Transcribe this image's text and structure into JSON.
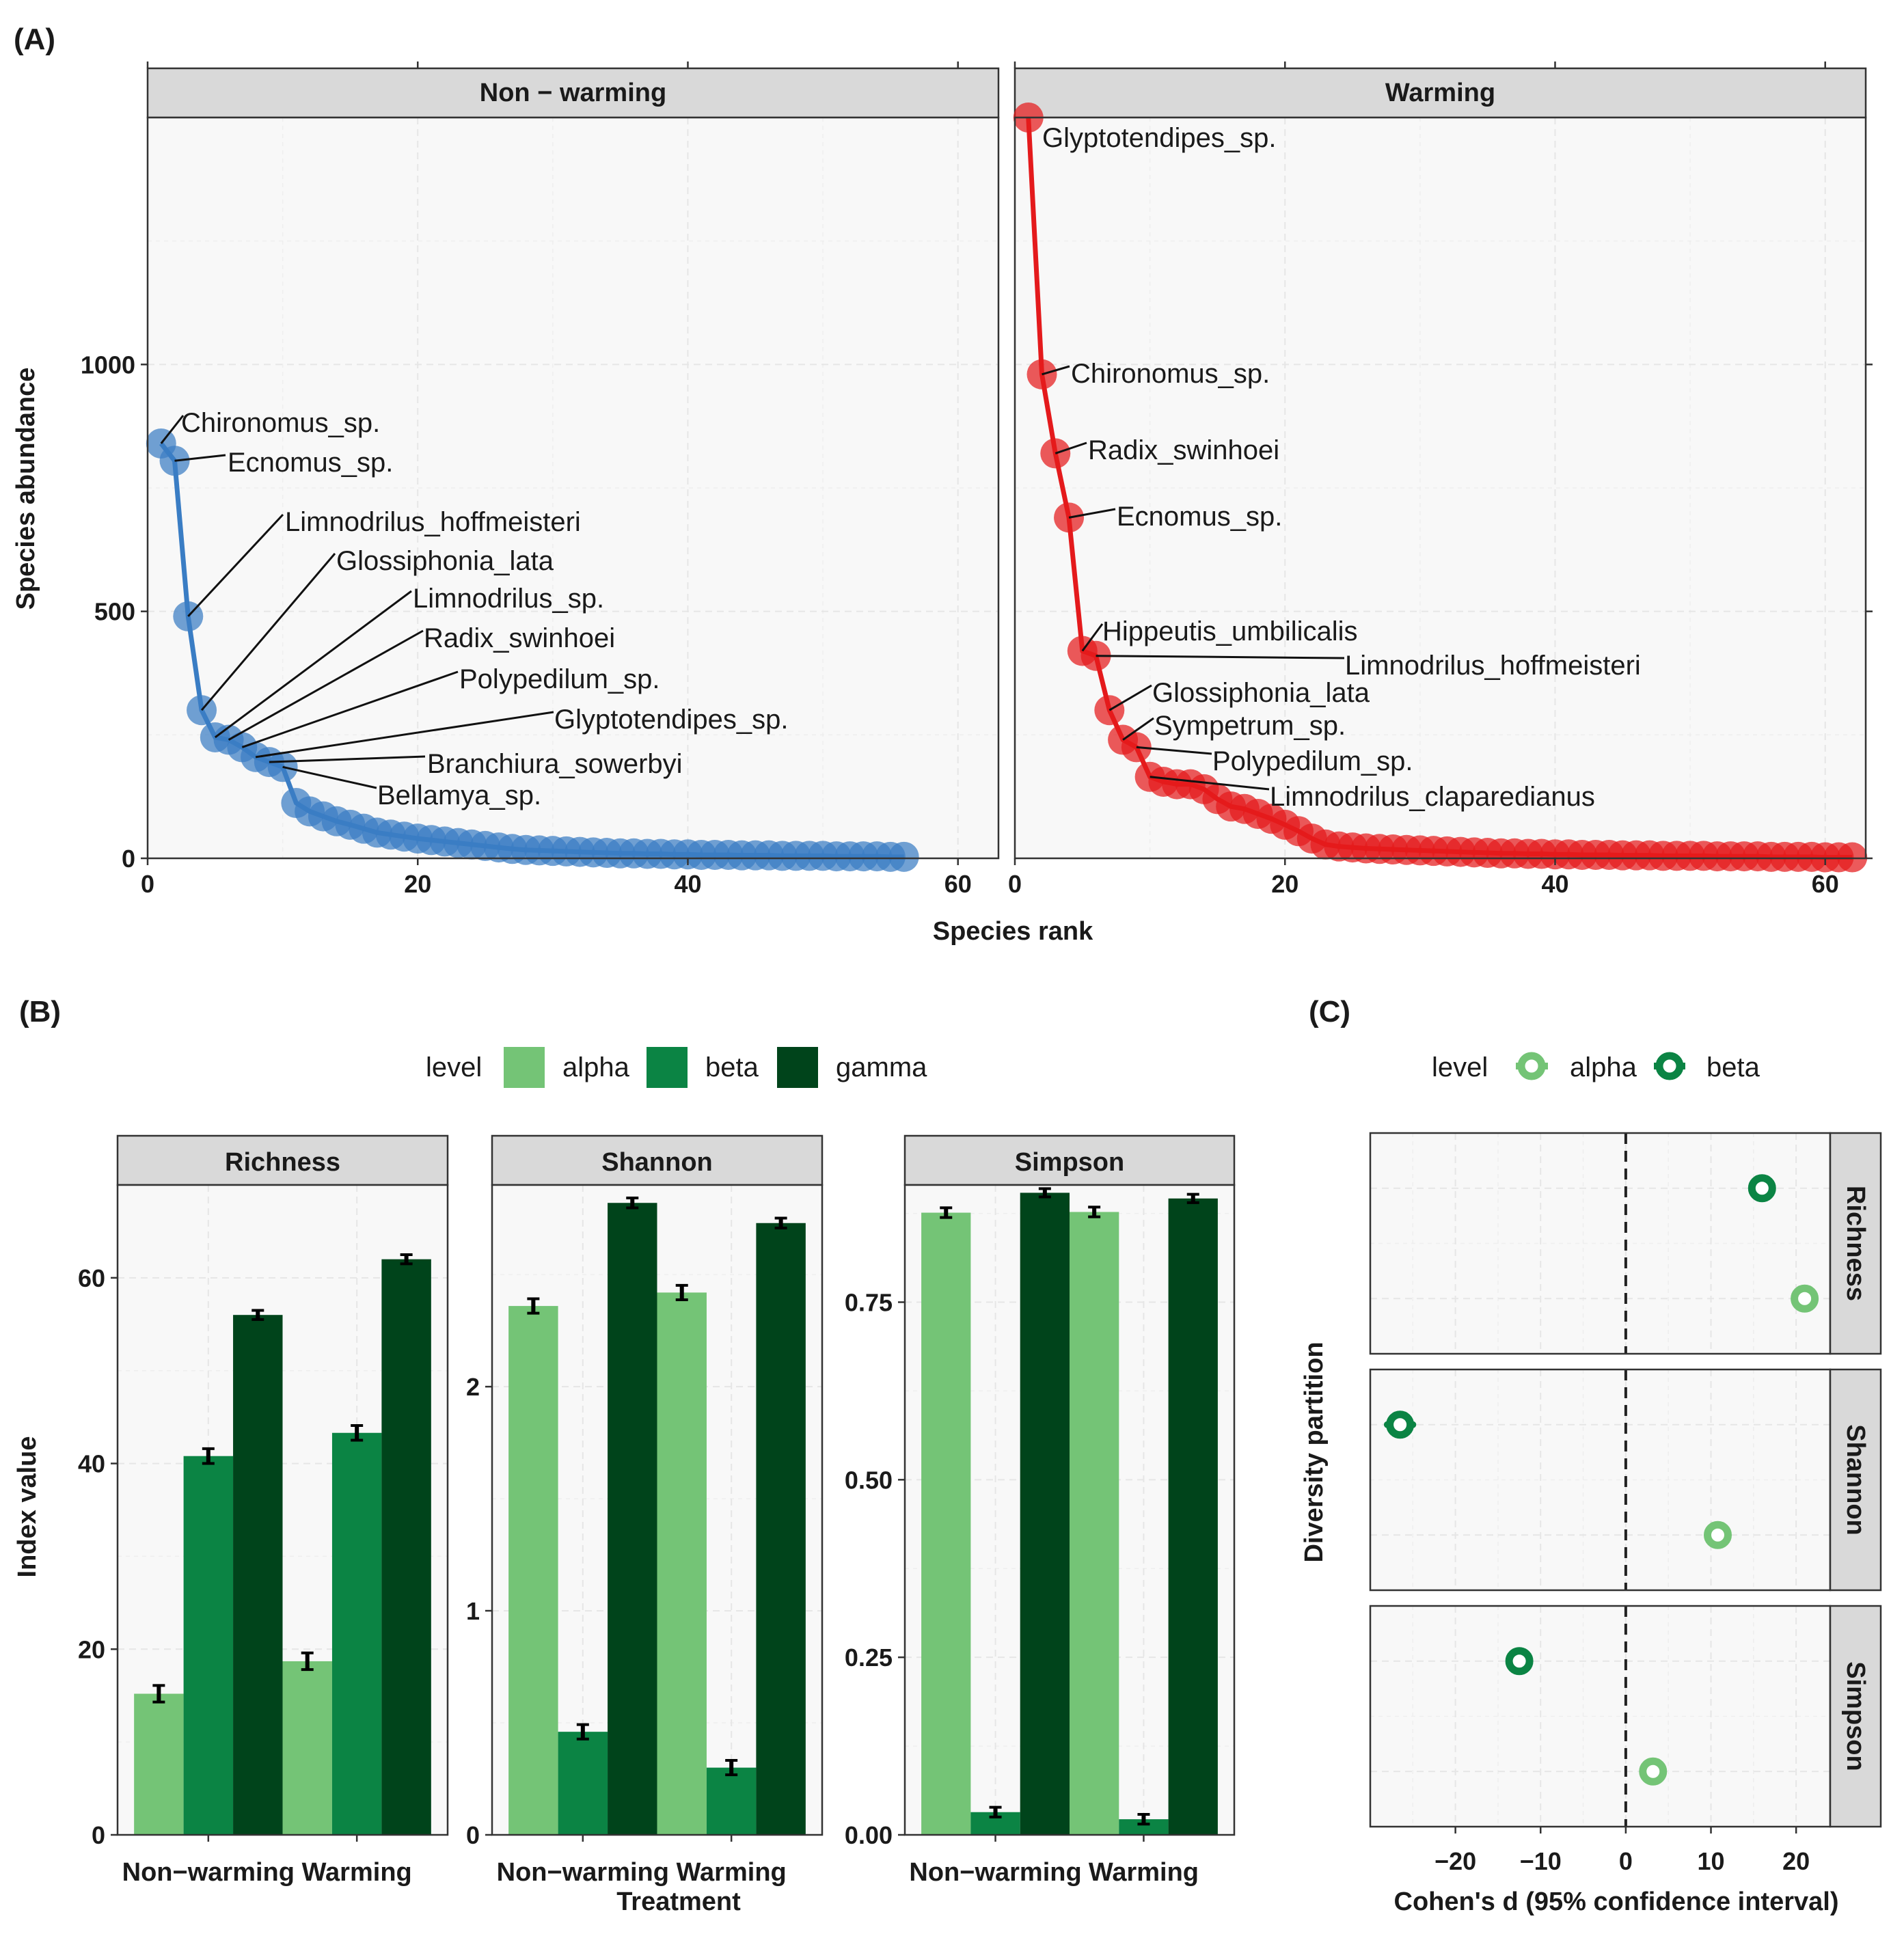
{
  "figure": {
    "panel_labels": {
      "a": "(A)",
      "b": "(B)",
      "c": "(C)"
    }
  },
  "colors": {
    "non_warming": "#3a7dc4",
    "warming": "#e41a1c",
    "alpha": "#74c476",
    "beta": "#0b8444",
    "gamma": "#00441b",
    "strip_bg": "#d9d9d9",
    "panel_bg": "#f8f8f8"
  },
  "chart_data": [
    {
      "id": "A",
      "type": "line",
      "xlabel": "Species rank",
      "ylabel": "Species abundance",
      "xlim": [
        0,
        63
      ],
      "ylim": [
        0,
        1500
      ],
      "xticks": [
        "0",
        "20",
        "40",
        "60"
      ],
      "yticks": [
        "0",
        "500",
        "1000"
      ],
      "facets": [
        {
          "name": "Non − warming",
          "values": [
            840,
            805,
            490,
            300,
            245,
            240,
            225,
            205,
            195,
            185,
            112,
            95,
            85,
            75,
            68,
            60,
            52,
            48,
            44,
            40,
            37,
            34,
            31,
            28,
            25,
            22,
            19,
            17,
            16,
            15,
            14,
            13,
            12,
            11,
            10,
            10,
            9,
            9,
            8,
            8,
            7,
            7,
            7,
            6,
            6,
            6,
            5,
            5,
            5,
            5,
            4,
            4,
            4,
            4,
            3,
            3
          ],
          "labels": [
            {
              "rank": 1,
              "text": "Chironomus_sp."
            },
            {
              "rank": 2,
              "text": "Ecnomus_sp."
            },
            {
              "rank": 3,
              "text": "Limnodrilus_hoffmeisteri"
            },
            {
              "rank": 4,
              "text": "Glossiphonia_lata"
            },
            {
              "rank": 5,
              "text": "Limnodrilus_sp."
            },
            {
              "rank": 6,
              "text": "Radix_swinhoei"
            },
            {
              "rank": 7,
              "text": "Polypedilum_sp."
            },
            {
              "rank": 8,
              "text": "Glyptotendipes_sp."
            },
            {
              "rank": 9,
              "text": "Branchiura_sowerbyi"
            },
            {
              "rank": 10,
              "text": "Bellamya_sp."
            }
          ]
        },
        {
          "name": "Warming",
          "values": [
            1500,
            980,
            820,
            690,
            420,
            410,
            300,
            240,
            225,
            165,
            155,
            150,
            150,
            140,
            120,
            105,
            100,
            90,
            80,
            68,
            55,
            40,
            28,
            24,
            22,
            20,
            19,
            18,
            17,
            16,
            15,
            14,
            13,
            12,
            11,
            10,
            10,
            9,
            9,
            8,
            8,
            7,
            7,
            7,
            6,
            6,
            6,
            5,
            5,
            5,
            5,
            4,
            4,
            4,
            4,
            3,
            3,
            3,
            3,
            2,
            2,
            2
          ],
          "labels": [
            {
              "rank": 1,
              "text": "Glyptotendipes_sp."
            },
            {
              "rank": 2,
              "text": "Chironomus_sp."
            },
            {
              "rank": 3,
              "text": "Radix_swinhoei"
            },
            {
              "rank": 4,
              "text": "Ecnomus_sp."
            },
            {
              "rank": 5,
              "text": "Hippeutis_umbilicalis"
            },
            {
              "rank": 6,
              "text": "Limnodrilus_hoffmeisteri"
            },
            {
              "rank": 7,
              "text": "Glossiphonia_lata"
            },
            {
              "rank": 8,
              "text": "Sympetrum_sp."
            },
            {
              "rank": 9,
              "text": "Polypedilum_sp."
            },
            {
              "rank": 10,
              "text": "Limnodrilus_claparedianus"
            }
          ]
        }
      ]
    },
    {
      "id": "B",
      "type": "bar",
      "xlabel": "Treatment",
      "ylabel": "Index value",
      "legend_title": "level",
      "levels": [
        "alpha",
        "beta",
        "gamma"
      ],
      "categories": [
        "Non−warming",
        "Warming"
      ],
      "facets": [
        {
          "name": "Richness",
          "ylim": [
            0,
            70
          ],
          "yticks": [
            0,
            20,
            40,
            60
          ],
          "ytick_labels": [
            "0",
            "20",
            "40",
            "60"
          ],
          "series": [
            {
              "name": "alpha",
              "values": [
                15.2,
                18.7
              ],
              "errors": [
                0.6,
                0.6
              ]
            },
            {
              "name": "beta",
              "values": [
                40.8,
                43.3
              ],
              "errors": [
                0.5,
                0.5
              ]
            },
            {
              "name": "gamma",
              "values": [
                56,
                62
              ],
              "errors": [
                0.2,
                0.2
              ]
            }
          ]
        },
        {
          "name": "Shannon",
          "ylim": [
            0,
            2.9
          ],
          "yticks": [
            0,
            1,
            2
          ],
          "ytick_labels": [
            "0",
            "1",
            "2"
          ],
          "series": [
            {
              "name": "alpha",
              "values": [
                2.36,
                2.42
              ],
              "errors": [
                0.02,
                0.02
              ]
            },
            {
              "name": "beta",
              "values": [
                0.46,
                0.3
              ],
              "errors": [
                0.02,
                0.02
              ]
            },
            {
              "name": "gamma",
              "values": [
                2.82,
                2.73
              ],
              "errors": [
                0.01,
                0.01
              ]
            }
          ]
        },
        {
          "name": "Simpson",
          "ylim": [
            0,
            0.915
          ],
          "yticks": [
            0,
            0.25,
            0.5,
            0.75
          ],
          "ytick_labels": [
            "0.00",
            "0.25",
            "0.50",
            "0.75"
          ],
          "series": [
            {
              "name": "alpha",
              "values": [
                0.876,
                0.877
              ],
              "errors": [
                0.003,
                0.003
              ]
            },
            {
              "name": "beta",
              "values": [
                0.032,
                0.022
              ],
              "errors": [
                0.003,
                0.003
              ]
            },
            {
              "name": "gamma",
              "values": [
                0.904,
                0.896
              ],
              "errors": [
                0.002,
                0.002
              ]
            }
          ]
        }
      ]
    },
    {
      "id": "C",
      "type": "scatter",
      "xlabel": "Cohen's d (95% confidence interval)",
      "ylabel": "Diversity partition",
      "legend_title": "level",
      "levels": [
        "alpha",
        "beta"
      ],
      "xlim": [
        -30,
        24
      ],
      "xticks": [
        -20,
        -10,
        0,
        10,
        20
      ],
      "xtick_labels": [
        "−20",
        "−10",
        "0",
        "10",
        "20"
      ],
      "facets": [
        {
          "name": "Richness",
          "points": [
            {
              "level": "alpha",
              "d": 21,
              "ci": [
                20,
                22
              ]
            },
            {
              "level": "beta",
              "d": 16,
              "ci": [
                15.5,
                16.5
              ]
            }
          ]
        },
        {
          "name": "Shannon",
          "points": [
            {
              "level": "alpha",
              "d": 10.8,
              "ci": [
                10.3,
                11.3
              ]
            },
            {
              "level": "beta",
              "d": -26.5,
              "ci": [
                -28,
                -25
              ]
            }
          ]
        },
        {
          "name": "Simpson",
          "points": [
            {
              "level": "alpha",
              "d": 3.2,
              "ci": [
                2.8,
                3.6
              ]
            },
            {
              "level": "beta",
              "d": -12.5,
              "ci": [
                -13,
                -12
              ]
            }
          ]
        }
      ]
    }
  ]
}
